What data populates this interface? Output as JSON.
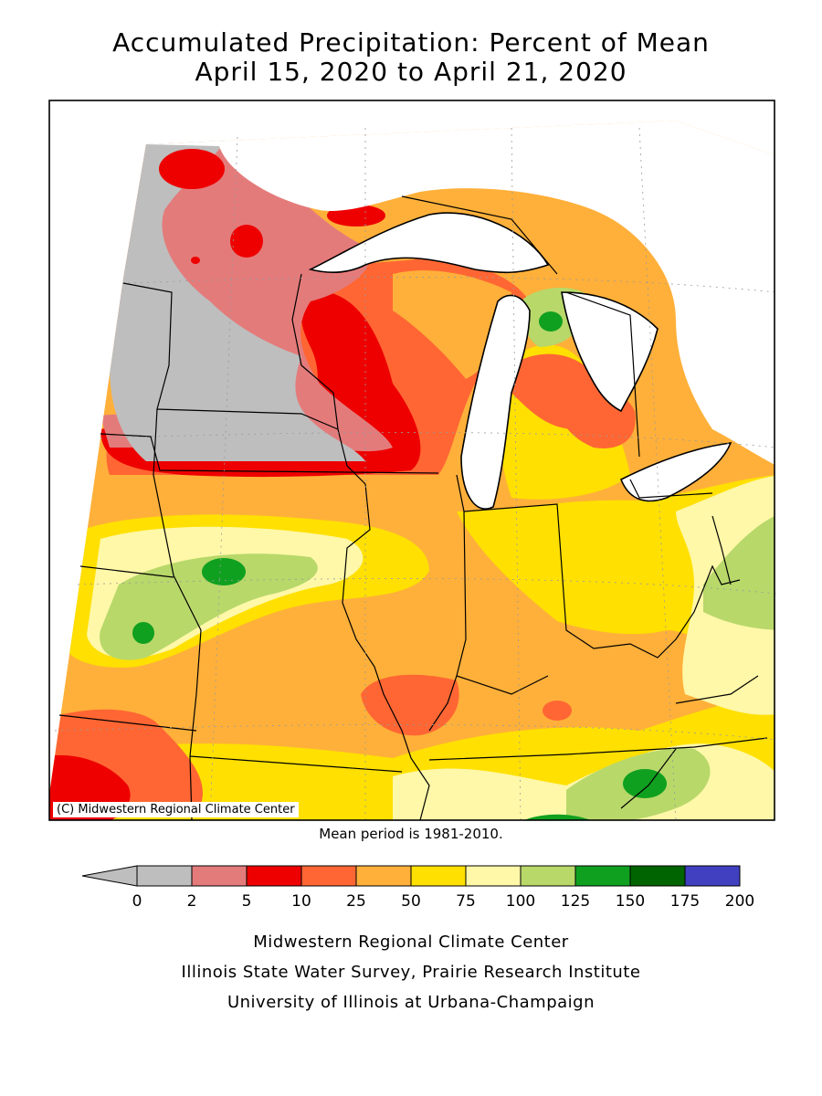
{
  "title_line1": "Accumulated Precipitation: Percent of Mean",
  "title_line2": "April 15, 2020 to April 21, 2020",
  "credit": "(C) Midwestern Regional Climate Center",
  "mean_note": "Mean period is 1981-2010.",
  "legend": {
    "ticks": [
      "0",
      "2",
      "5",
      "10",
      "25",
      "50",
      "75",
      "100",
      "125",
      "150",
      "175",
      "200"
    ],
    "colors": [
      "#bebebe",
      "#e47b7b",
      "#ee0000",
      "#ff6633",
      "#ffb03a",
      "#ffe000",
      "#fff8a8",
      "#b8d86a",
      "#10a020",
      "#006400",
      "#4040c0"
    ]
  },
  "footer": {
    "line1": "Midwestern Regional Climate Center",
    "line2": "Illinois State Water Survey, Prairie Research Institute",
    "line3": "University of Illinois at Urbana-Champaign"
  }
}
